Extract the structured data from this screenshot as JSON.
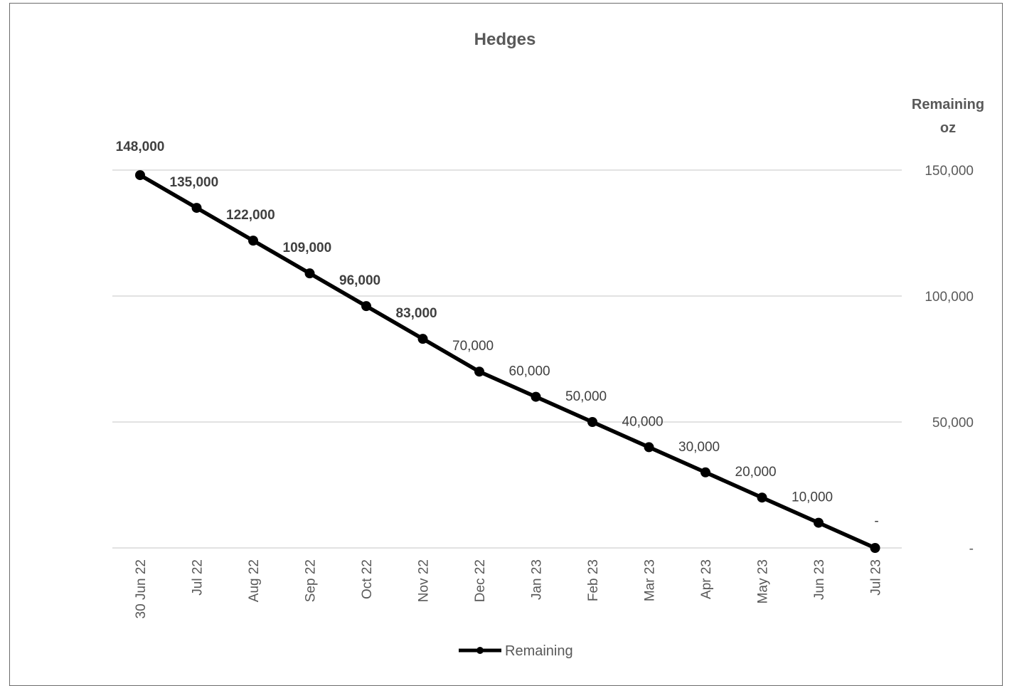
{
  "chart_data": {
    "type": "line",
    "title": "Hedges",
    "y_axis_title_lines": [
      "Remaining",
      "oz"
    ],
    "y_axis_position": "right",
    "categories": [
      "30 Jun 22",
      "Jul 22",
      "Aug 22",
      "Sep 22",
      "Oct 22",
      "Nov 22",
      "Dec 22",
      "Jan 23",
      "Feb 23",
      "Mar 23",
      "Apr 23",
      "May 23",
      "Jun 23",
      "Jul 23"
    ],
    "series": [
      {
        "name": "Remaining",
        "values": [
          148000,
          135000,
          122000,
          109000,
          96000,
          83000,
          70000,
          60000,
          50000,
          40000,
          30000,
          20000,
          10000,
          0
        ],
        "color": "#000000"
      }
    ],
    "data_labels": [
      "148,000",
      "135,000",
      "122,000",
      "109,000",
      "96,000",
      "83,000",
      "70,000",
      "60,000",
      "50,000",
      "40,000",
      "30,000",
      "20,000",
      "10,000",
      "-"
    ],
    "ylim": [
      0,
      150000
    ],
    "y_ticks": [
      {
        "value": 0,
        "label": "-"
      },
      {
        "value": 50000,
        "label": "50,000"
      },
      {
        "value": 100000,
        "label": "100,000"
      },
      {
        "value": 150000,
        "label": "150,000"
      }
    ],
    "grid": true,
    "legend_position": "bottom",
    "colors": {
      "gridline": "#d9d9d9",
      "text": "#595959",
      "line": "#000000"
    }
  }
}
